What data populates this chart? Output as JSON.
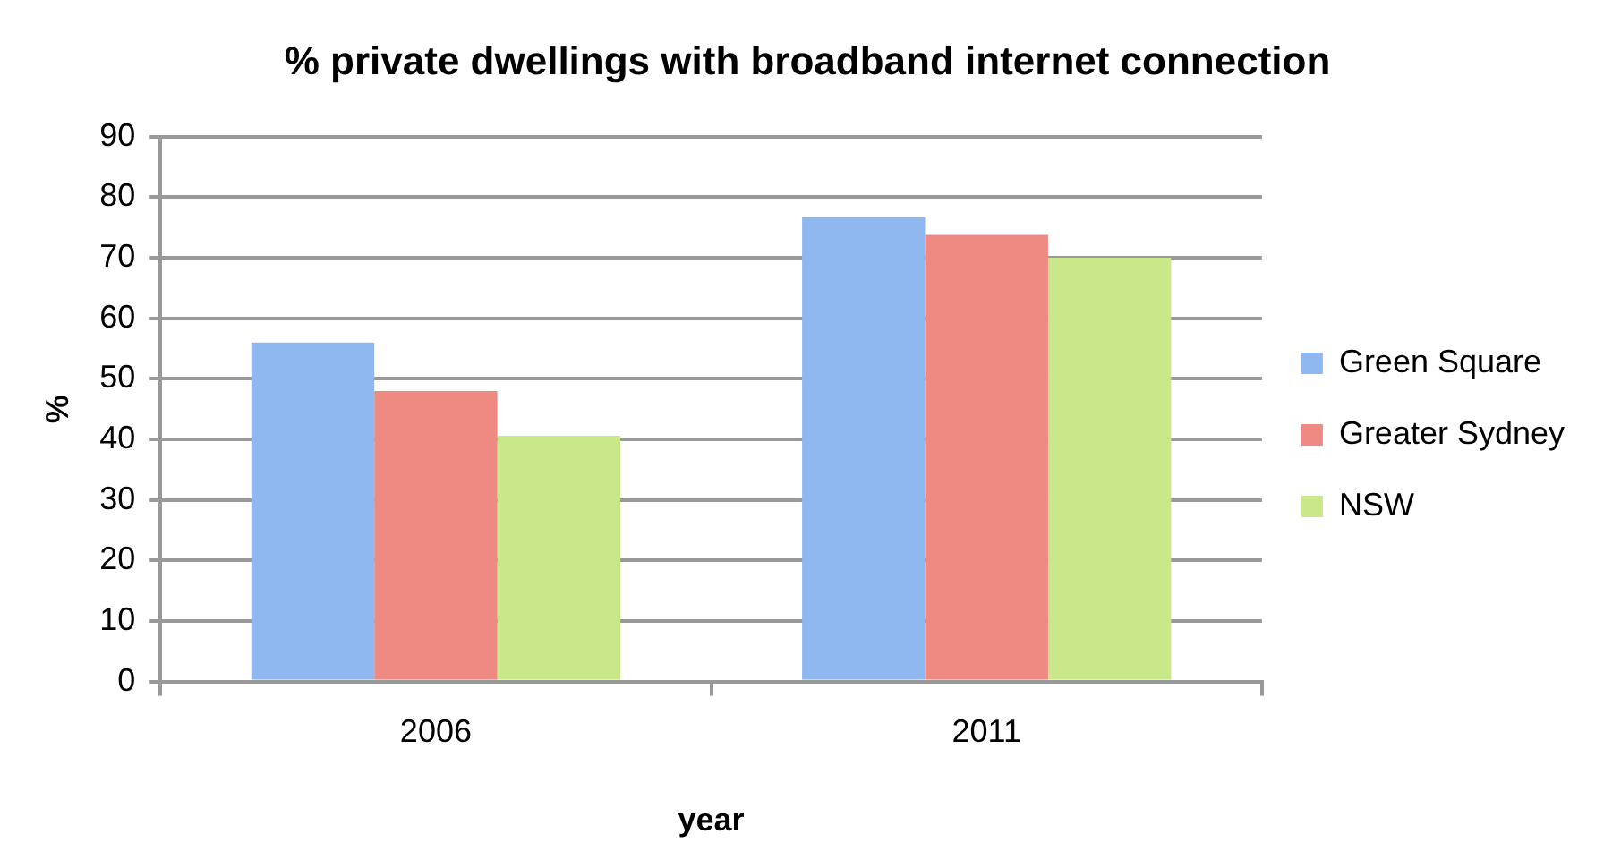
{
  "chart_data": {
    "type": "bar",
    "title": "% private dwellings with broadband internet connection",
    "xlabel": "year",
    "ylabel": "%",
    "categories": [
      "2006",
      "2011"
    ],
    "series": [
      {
        "name": "Green Square",
        "color": "#8fb8f0",
        "values": [
          56,
          76.7
        ]
      },
      {
        "name": "Greater Sydney",
        "color": "#ee8a82",
        "values": [
          48,
          73.8
        ]
      },
      {
        "name": "NSW",
        "color": "#c8e88a",
        "values": [
          40.6,
          70
        ]
      }
    ],
    "ylim": [
      0,
      90
    ],
    "yticks": [
      0,
      10,
      20,
      30,
      40,
      50,
      60,
      70,
      80,
      90
    ],
    "grid": "y",
    "legend": "right"
  }
}
